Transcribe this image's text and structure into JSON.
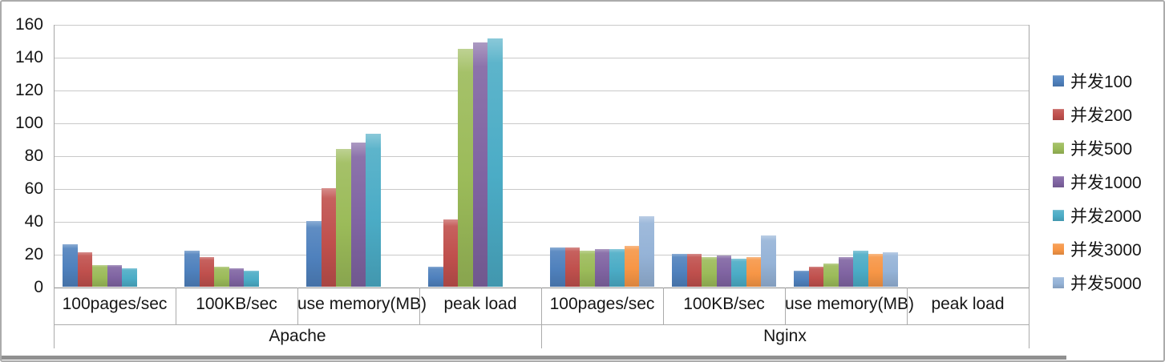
{
  "window": {
    "background": "#FFFFFF",
    "frame_border": "#ABABAB"
  },
  "colors": {
    "gridline": "#C9C9C9",
    "baseline": "#8E8E8E",
    "axis_table_line": "#ABABAB",
    "text": "#161616",
    "bottom_edge_strip": "#909090"
  },
  "chart_data": {
    "type": "bar",
    "title": "",
    "groups": [
      "Apache",
      "Nginx"
    ],
    "categories": [
      "100pages/sec",
      "100KB/sec",
      "use memory(MB)",
      "peak load"
    ],
    "yticks": [
      "0",
      "20",
      "40",
      "60",
      "80",
      "100",
      "120",
      "140",
      "160"
    ],
    "ylim": [
      0,
      160
    ],
    "ytick_step": 20,
    "grid": true,
    "legend_position": "right",
    "series": [
      {
        "name": "并发100",
        "color": "#4F81BD",
        "apache": [
          26,
          22,
          40,
          12
        ],
        "nginx": [
          24,
          20,
          10,
          0
        ]
      },
      {
        "name": "并发200",
        "color": "#C0504D",
        "apache": [
          21,
          18,
          60,
          41
        ],
        "nginx": [
          24,
          20,
          12,
          0
        ]
      },
      {
        "name": "并发500",
        "color": "#9BBB59",
        "apache": [
          13,
          12,
          84,
          145
        ],
        "nginx": [
          22,
          18,
          14,
          0
        ]
      },
      {
        "name": "并发1000",
        "color": "#8064A2",
        "apache": [
          13,
          11,
          88,
          149
        ],
        "nginx": [
          23,
          19,
          18,
          0
        ]
      },
      {
        "name": "并发2000",
        "color": "#4BACC6",
        "apache": [
          11,
          10,
          93,
          151
        ],
        "nginx": [
          23,
          17,
          22,
          0
        ]
      },
      {
        "name": "并发3000",
        "color": "#F79646",
        "apache": [
          null,
          null,
          null,
          null
        ],
        "nginx": [
          25,
          18,
          20,
          0
        ]
      },
      {
        "name": "并发5000",
        "color": "#95B3D7",
        "apache": [
          null,
          null,
          null,
          null
        ],
        "nginx": [
          43,
          31,
          21,
          0
        ]
      }
    ]
  }
}
